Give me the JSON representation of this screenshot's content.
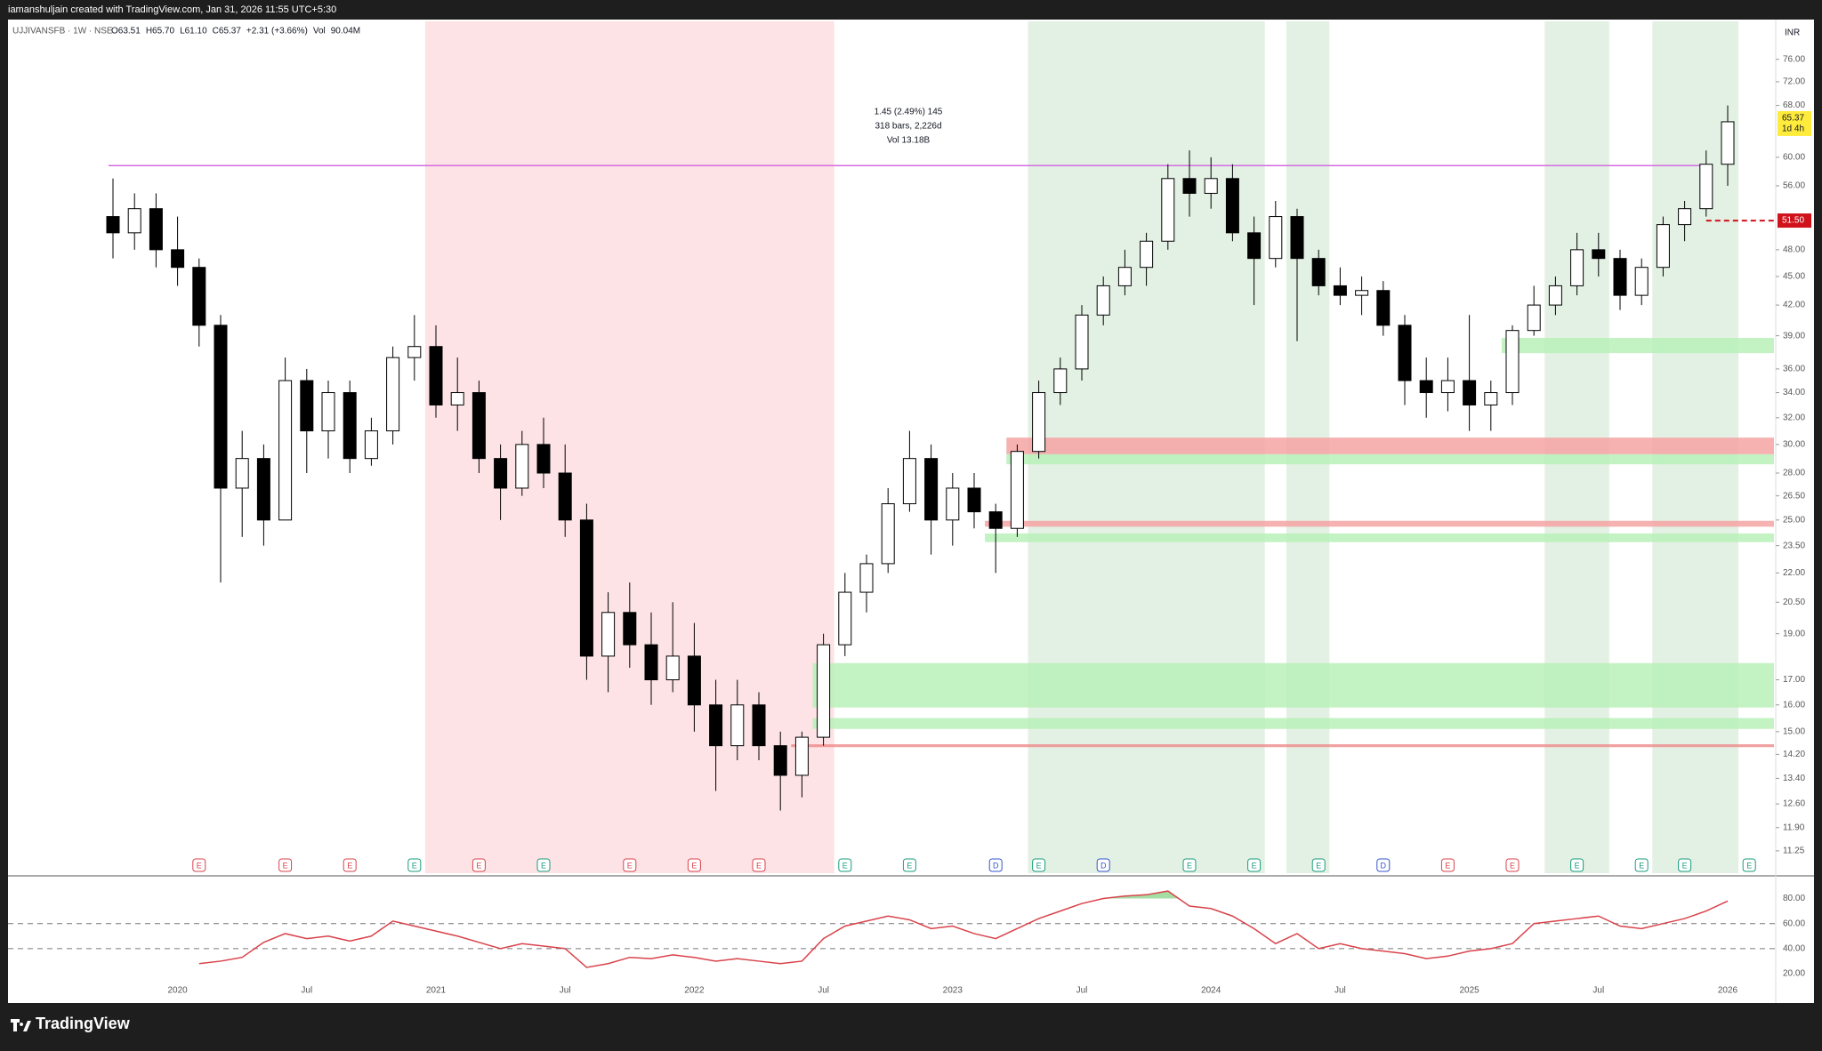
{
  "header": "iamanshuljain created with TradingView.com, Jan 31, 2026 11:55 UTC+5:30",
  "footer": "TradingView",
  "chart_data": {
    "type": "candlestick",
    "legend": {
      "symbol": "UJJIVANSFB · 1W · NSE",
      "items": [
        "O63.51",
        "H65.70",
        "L61.10",
        "C65.37",
        "+2.31 (+3.66%)",
        "Vol",
        "90.04M"
      ]
    },
    "currency": "INR",
    "countdown": "1d 4h",
    "measure": [
      "1.45 (2.49%) 145",
      "318 bars, 2,226d",
      "Vol 13.18B"
    ],
    "log_scale": true,
    "ylim": [
      10.66,
      83.3
    ],
    "yticks": [
      {
        "value": 76,
        "label": "76.00"
      },
      {
        "value": 72,
        "label": "72.00"
      },
      {
        "value": 68,
        "label": "68.00"
      },
      {
        "value": 60,
        "label": "60.00"
      },
      {
        "value": 56,
        "label": "56.00"
      },
      {
        "value": 48,
        "label": "48.00"
      },
      {
        "value": 45,
        "label": "45.00"
      },
      {
        "value": 42,
        "label": "42.00"
      },
      {
        "value": 39,
        "label": "39.00"
      },
      {
        "value": 36,
        "label": "36.00"
      },
      {
        "value": 34,
        "label": "34.00"
      },
      {
        "value": 32,
        "label": "32.00"
      },
      {
        "value": 30,
        "label": "30.00"
      },
      {
        "value": 28,
        "label": "28.00"
      },
      {
        "value": 26.5,
        "label": "26.50"
      },
      {
        "value": 25,
        "label": "25.00"
      },
      {
        "value": 23.5,
        "label": "23.50"
      },
      {
        "value": 22,
        "label": "22.00"
      },
      {
        "value": 20.5,
        "label": "20.50"
      },
      {
        "value": 19,
        "label": "19.00"
      },
      {
        "value": 17,
        "label": "17.00"
      },
      {
        "value": 16,
        "label": "16.00"
      },
      {
        "value": 15,
        "label": "15.00"
      },
      {
        "value": 14.2,
        "label": "14.20"
      },
      {
        "value": 13.4,
        "label": "13.40"
      },
      {
        "value": 12.6,
        "label": "12.60"
      },
      {
        "value": 11.9,
        "label": "11.90"
      },
      {
        "value": 11.25,
        "label": "11.25"
      }
    ],
    "categories": [
      null,
      null,
      null,
      "2020",
      null,
      null,
      null,
      null,
      null,
      "Jul",
      null,
      null,
      null,
      null,
      null,
      "2021",
      null,
      null,
      null,
      null,
      null,
      "Jul",
      null,
      null,
      null,
      null,
      null,
      "2022",
      null,
      null,
      null,
      null,
      null,
      "Jul",
      null,
      null,
      null,
      null,
      null,
      "2023",
      null,
      null,
      null,
      null,
      null,
      "Jul",
      null,
      null,
      null,
      null,
      null,
      "2024",
      null,
      null,
      null,
      null,
      null,
      "Jul",
      null,
      null,
      null,
      null,
      null,
      "2025",
      null,
      null,
      null,
      null,
      null,
      "Jul",
      null,
      null,
      null,
      null,
      null,
      "2026"
    ],
    "candles": [
      {
        "o": 52,
        "h": 57,
        "l": 47,
        "c": 50
      },
      {
        "o": 50,
        "h": 55,
        "l": 48,
        "c": 53
      },
      {
        "o": 53,
        "h": 55,
        "l": 46,
        "c": 48
      },
      {
        "o": 48,
        "h": 52,
        "l": 44,
        "c": 46
      },
      {
        "o": 46,
        "h": 47,
        "l": 38,
        "c": 40
      },
      {
        "o": 40,
        "h": 41,
        "l": 21.5,
        "c": 27
      },
      {
        "o": 27,
        "h": 31,
        "l": 24,
        "c": 29
      },
      {
        "o": 29,
        "h": 30,
        "l": 23.5,
        "c": 25
      },
      {
        "o": 25,
        "h": 37,
        "l": 25,
        "c": 35
      },
      {
        "o": 35,
        "h": 36,
        "l": 28,
        "c": 31
      },
      {
        "o": 31,
        "h": 35,
        "l": 29,
        "c": 34
      },
      {
        "o": 34,
        "h": 35,
        "l": 28,
        "c": 29
      },
      {
        "o": 29,
        "h": 32,
        "l": 28.5,
        "c": 31
      },
      {
        "o": 31,
        "h": 38,
        "l": 30,
        "c": 37
      },
      {
        "o": 37,
        "h": 41,
        "l": 35,
        "c": 38
      },
      {
        "o": 38,
        "h": 40,
        "l": 32,
        "c": 33
      },
      {
        "o": 33,
        "h": 37,
        "l": 31,
        "c": 34
      },
      {
        "o": 34,
        "h": 35,
        "l": 28,
        "c": 29
      },
      {
        "o": 29,
        "h": 30,
        "l": 25,
        "c": 27
      },
      {
        "o": 27,
        "h": 31,
        "l": 26.5,
        "c": 30
      },
      {
        "o": 30,
        "h": 32,
        "l": 27,
        "c": 28
      },
      {
        "o": 28,
        "h": 30,
        "l": 24,
        "c": 25
      },
      {
        "o": 25,
        "h": 26,
        "l": 17,
        "c": 18
      },
      {
        "o": 18,
        "h": 21,
        "l": 16.5,
        "c": 20
      },
      {
        "o": 20,
        "h": 21.5,
        "l": 17.5,
        "c": 18.5
      },
      {
        "o": 18.5,
        "h": 20,
        "l": 16,
        "c": 17
      },
      {
        "o": 17,
        "h": 20.5,
        "l": 16.5,
        "c": 18
      },
      {
        "o": 18,
        "h": 19.5,
        "l": 15,
        "c": 16
      },
      {
        "o": 16,
        "h": 17,
        "l": 13,
        "c": 14.5
      },
      {
        "o": 14.5,
        "h": 17,
        "l": 14,
        "c": 16
      },
      {
        "o": 16,
        "h": 16.5,
        "l": 14,
        "c": 14.5
      },
      {
        "o": 14.5,
        "h": 15,
        "l": 12.4,
        "c": 13.5
      },
      {
        "o": 13.5,
        "h": 15,
        "l": 12.8,
        "c": 14.8
      },
      {
        "o": 14.8,
        "h": 19,
        "l": 14.5,
        "c": 18.5
      },
      {
        "o": 18.5,
        "h": 22,
        "l": 18,
        "c": 21
      },
      {
        "o": 21,
        "h": 23,
        "l": 20,
        "c": 22.5
      },
      {
        "o": 22.5,
        "h": 27,
        "l": 22,
        "c": 26
      },
      {
        "o": 26,
        "h": 31,
        "l": 25.5,
        "c": 29
      },
      {
        "o": 29,
        "h": 30,
        "l": 23,
        "c": 25
      },
      {
        "o": 25,
        "h": 28,
        "l": 23.5,
        "c": 27
      },
      {
        "o": 27,
        "h": 28,
        "l": 24.5,
        "c": 25.5
      },
      {
        "o": 25.5,
        "h": 26,
        "l": 22,
        "c": 24.5
      },
      {
        "o": 24.5,
        "h": 30,
        "l": 24,
        "c": 29.5
      },
      {
        "o": 29.5,
        "h": 35,
        "l": 29,
        "c": 34
      },
      {
        "o": 34,
        "h": 37,
        "l": 33,
        "c": 36
      },
      {
        "o": 36,
        "h": 42,
        "l": 35,
        "c": 41
      },
      {
        "o": 41,
        "h": 45,
        "l": 40,
        "c": 44
      },
      {
        "o": 44,
        "h": 48,
        "l": 43,
        "c": 46
      },
      {
        "o": 46,
        "h": 50,
        "l": 44,
        "c": 49
      },
      {
        "o": 49,
        "h": 59,
        "l": 48,
        "c": 57
      },
      {
        "o": 57,
        "h": 61,
        "l": 52,
        "c": 55
      },
      {
        "o": 55,
        "h": 60,
        "l": 53,
        "c": 57
      },
      {
        "o": 57,
        "h": 59,
        "l": 49,
        "c": 50
      },
      {
        "o": 50,
        "h": 52,
        "l": 42,
        "c": 47
      },
      {
        "o": 47,
        "h": 54,
        "l": 46,
        "c": 52
      },
      {
        "o": 52,
        "h": 53,
        "l": 38.5,
        "c": 47
      },
      {
        "o": 47,
        "h": 48,
        "l": 43,
        "c": 44
      },
      {
        "o": 44,
        "h": 46,
        "l": 42,
        "c": 43
      },
      {
        "o": 43,
        "h": 45,
        "l": 41,
        "c": 43.5
      },
      {
        "o": 43.5,
        "h": 44.5,
        "l": 39,
        "c": 40
      },
      {
        "o": 40,
        "h": 41,
        "l": 33,
        "c": 35
      },
      {
        "o": 35,
        "h": 37,
        "l": 32,
        "c": 34
      },
      {
        "o": 34,
        "h": 37,
        "l": 32.5,
        "c": 35
      },
      {
        "o": 35,
        "h": 41,
        "l": 31,
        "c": 33
      },
      {
        "o": 33,
        "h": 35,
        "l": 31,
        "c": 34
      },
      {
        "o": 34,
        "h": 40,
        "l": 33,
        "c": 39.5
      },
      {
        "o": 39.5,
        "h": 44,
        "l": 39,
        "c": 42
      },
      {
        "o": 42,
        "h": 45,
        "l": 41,
        "c": 44
      },
      {
        "o": 44,
        "h": 50,
        "l": 43,
        "c": 48
      },
      {
        "o": 48,
        "h": 50,
        "l": 45,
        "c": 47
      },
      {
        "o": 47,
        "h": 48,
        "l": 41.5,
        "c": 43
      },
      {
        "o": 43,
        "h": 47,
        "l": 42,
        "c": 46
      },
      {
        "o": 46,
        "h": 52,
        "l": 45,
        "c": 51
      },
      {
        "o": 51,
        "h": 54,
        "l": 49,
        "c": 53
      },
      {
        "o": 53,
        "h": 61,
        "l": 52,
        "c": 59
      },
      {
        "o": 59,
        "h": 68,
        "l": 56,
        "c": 65.37
      }
    ],
    "events": [
      null,
      null,
      null,
      null,
      {
        "label": "E",
        "color": "#d9434b"
      },
      null,
      null,
      null,
      {
        "label": "E",
        "color": "#d9434b"
      },
      null,
      null,
      {
        "label": "E",
        "color": "#d9434b"
      },
      null,
      null,
      {
        "label": "E",
        "color": "#1a9c7e"
      },
      null,
      null,
      {
        "label": "E",
        "color": "#d9434b"
      },
      null,
      null,
      {
        "label": "E",
        "color": "#1a9c7e"
      },
      null,
      null,
      null,
      {
        "label": "E",
        "color": "#d9434b"
      },
      null,
      null,
      {
        "label": "E",
        "color": "#d9434b"
      },
      null,
      null,
      {
        "label": "E",
        "color": "#d9434b"
      },
      null,
      null,
      null,
      {
        "label": "E",
        "color": "#1a9c7e"
      },
      null,
      null,
      {
        "label": "E",
        "color": "#1a9c7e"
      },
      null,
      null,
      null,
      {
        "label": "D",
        "color": "#3355cc"
      },
      null,
      {
        "label": "E",
        "color": "#1a9c7e"
      },
      null,
      null,
      {
        "label": "D",
        "color": "#3355cc"
      },
      null,
      null,
      null,
      {
        "label": "E",
        "color": "#1a9c7e"
      },
      null,
      null,
      {
        "label": "E",
        "color": "#1a9c7e"
      },
      null,
      null,
      {
        "label": "E",
        "color": "#1a9c7e"
      },
      null,
      null,
      {
        "label": "D",
        "color": "#3355cc"
      },
      null,
      null,
      {
        "label": "E",
        "color": "#d9434b"
      },
      null,
      null,
      {
        "label": "E",
        "color": "#d9434b"
      },
      null,
      null,
      {
        "label": "E",
        "color": "#1a9c7e"
      },
      null,
      null,
      {
        "label": "E",
        "color": "#1a9c7e"
      },
      null,
      {
        "label": "E",
        "color": "#1a9c7e"
      },
      null,
      null,
      {
        "label": "E",
        "color": "#1a9c7e"
      }
    ],
    "bands": [
      {
        "from": 15,
        "to": 33,
        "color": "#fde3e5"
      },
      {
        "from": 43,
        "to": 53,
        "color": "#e3f1e4"
      },
      {
        "from": 55,
        "to": 56,
        "color": "#e3f1e4"
      },
      {
        "from": 67,
        "to": 69,
        "color": "#e3f1e4"
      },
      {
        "from": 72,
        "to": 75,
        "color": "#e3f1e4"
      }
    ],
    "zones": [
      {
        "from": 42,
        "low": 29.3,
        "high": 30.5,
        "color": "#f5a3a3"
      },
      {
        "from": 42,
        "low": 28.6,
        "high": 29.3,
        "color": "#b8f0b8"
      },
      {
        "from": 41,
        "low": 24.6,
        "high": 24.95,
        "color": "#f5a3a3"
      },
      {
        "from": 41,
        "low": 23.7,
        "high": 24.2,
        "color": "#b8f0b8"
      },
      {
        "from": 33,
        "low": 15.9,
        "high": 17.7,
        "color": "#b8f0b8"
      },
      {
        "from": 33,
        "low": 15.1,
        "high": 15.5,
        "color": "#b8f0b8"
      },
      {
        "from": 32,
        "low": 14.45,
        "high": 14.55,
        "color": "#ef8f8f"
      },
      {
        "from": 65,
        "low": 37.4,
        "high": 38.8,
        "color": "#b8f0b8"
      }
    ],
    "resistance": {
      "value": 58.8,
      "color": "#d36be0"
    },
    "stop": {
      "value": 51.5,
      "label": "51.50",
      "color": "#d0121b"
    },
    "rsi": {
      "values": [
        null,
        null,
        null,
        null,
        28,
        30,
        33,
        45,
        52,
        48,
        50,
        46,
        50,
        62,
        58,
        54,
        50,
        45,
        40,
        44,
        42,
        40,
        25,
        28,
        33,
        32,
        35,
        33,
        30,
        32,
        30,
        28,
        30,
        48,
        58,
        62,
        66,
        63,
        56,
        58,
        52,
        48,
        56,
        64,
        70,
        76,
        80,
        82,
        83,
        86,
        74,
        72,
        66,
        56,
        44,
        52,
        40,
        44,
        40,
        38,
        36,
        32,
        34,
        38,
        40,
        44,
        60,
        62,
        64,
        66,
        58,
        56,
        60,
        64,
        70,
        78
      ],
      "color": "#d9434b",
      "ylim": [
        -2,
        96
      ],
      "levels": [
        60,
        40
      ],
      "overbought": 80,
      "yticks": [
        {
          "value": 80,
          "label": "80.00"
        },
        {
          "value": 60,
          "label": "60.00"
        },
        {
          "value": 40,
          "label": "40.00"
        },
        {
          "value": 20,
          "label": "20.00"
        }
      ]
    }
  }
}
